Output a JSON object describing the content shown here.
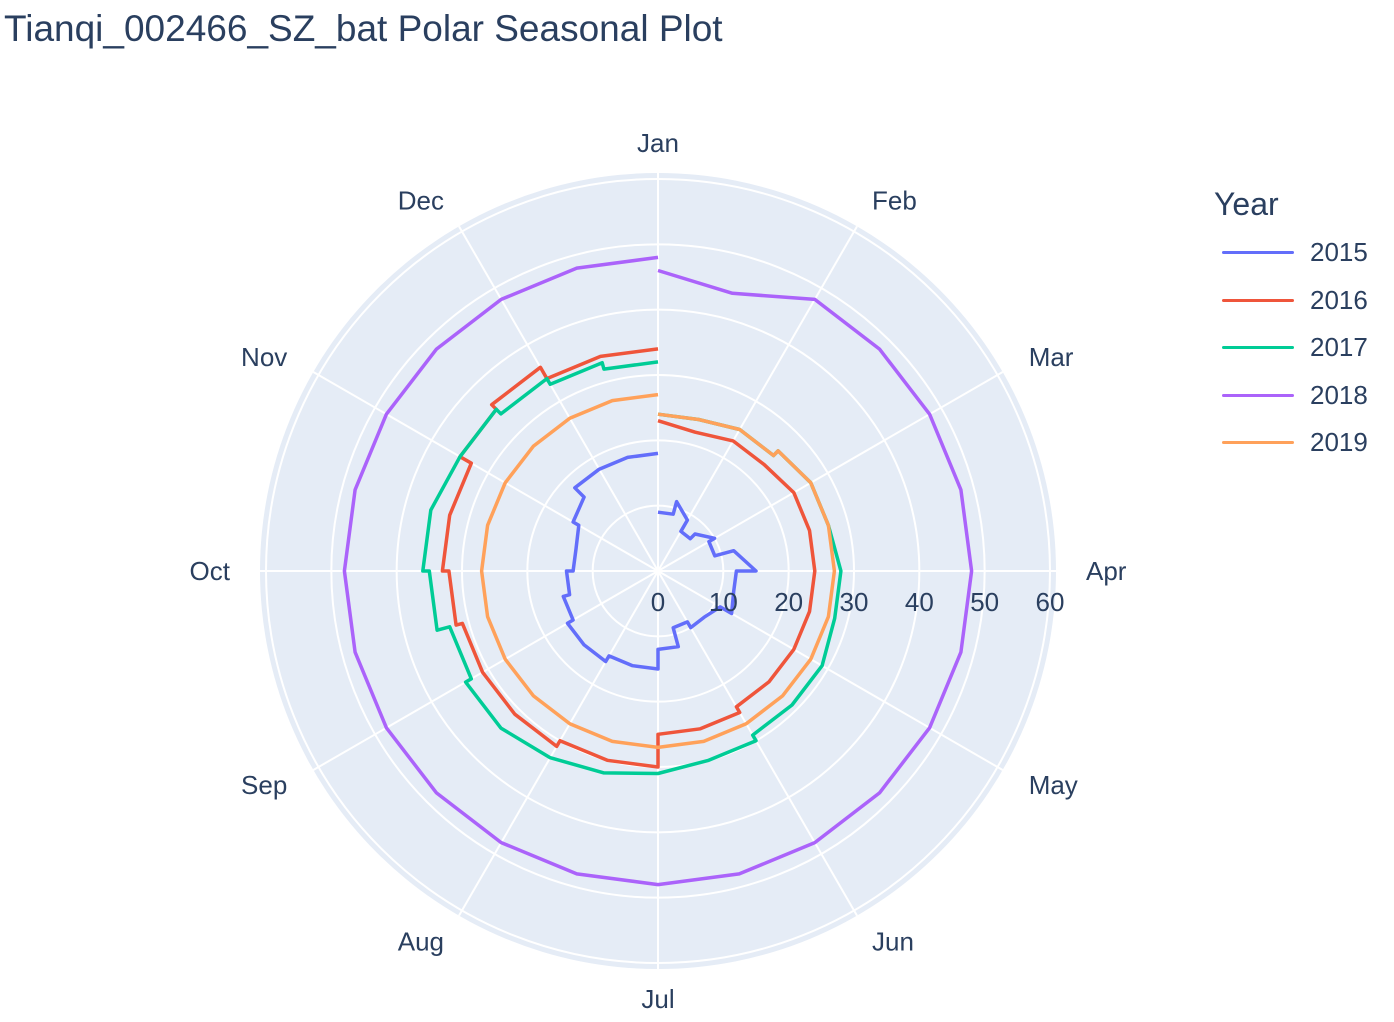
{
  "chart_data": {
    "type": "polar-line",
    "title": "Tianqi_002466_SZ_bat Polar Seasonal Plot",
    "legend_title": "Year",
    "legend_position": "right",
    "radial_axis": {
      "range": [
        0,
        60
      ],
      "ticks": [
        0,
        10,
        20,
        30,
        40,
        50,
        60
      ]
    },
    "angular_axis": {
      "direction": "clockwise",
      "rotation": "Jan at top",
      "categories": [
        "Jan",
        "Feb",
        "Mar",
        "Apr",
        "May",
        "Jun",
        "Jul",
        "Aug",
        "Sep",
        "Oct",
        "Nov",
        "Dec"
      ]
    },
    "x": [
      0.0,
      0.5,
      0.5,
      1.0,
      1.0,
      1.5,
      1.5,
      2.0,
      2.0,
      2.5,
      2.5,
      3.0,
      3.0,
      3.5,
      3.5,
      4.0,
      4.0,
      4.5,
      4.5,
      5.0,
      5.0,
      5.5,
      5.5,
      6.0,
      6.0,
      6.5,
      6.5,
      7.0,
      7.0,
      7.5,
      7.5,
      8.0,
      8.0,
      8.5,
      8.5,
      9.0,
      9.0,
      9.5,
      9.5,
      10.0,
      10.0,
      10.5,
      10.5,
      11.0,
      11.0,
      11.5,
      11.5,
      12.0
    ],
    "series": [
      {
        "name": "2015",
        "color": "#636efa",
        "values": [
          9,
          9,
          11,
          9,
          7,
          7,
          8,
          10,
          9,
          9,
          12,
          15,
          12,
          12,
          12,
          13,
          11,
          10,
          10,
          10,
          9,
          9,
          12,
          12,
          15,
          15,
          15,
          15,
          16,
          16,
          16,
          16,
          15,
          15,
          14,
          14,
          13,
          13,
          13,
          14,
          15,
          16,
          18,
          18,
          18,
          18,
          18,
          18
        ]
      },
      {
        "name": "2016",
        "color": "#ef553b",
        "values": [
          23,
          22,
          22,
          23,
          23,
          23,
          23,
          24,
          24,
          24,
          24,
          24,
          24,
          24,
          24,
          24,
          24,
          24,
          24,
          24,
          25,
          25,
          25,
          25,
          30,
          30,
          30,
          30,
          31,
          31,
          31,
          31,
          31,
          31,
          32,
          32,
          33,
          33,
          33,
          33,
          35,
          35,
          36,
          36,
          34,
          34,
          34,
          34
        ]
      },
      {
        "name": "2017",
        "color": "#00cc96",
        "values": [
          24,
          24,
          24,
          25,
          25,
          25,
          26,
          27,
          27,
          27,
          27,
          28,
          28,
          28,
          28,
          29,
          29,
          29,
          29,
          29,
          30,
          30,
          30,
          31,
          31,
          32,
          32,
          33,
          33,
          34,
          34,
          34,
          33,
          33,
          35,
          35,
          36,
          36,
          36,
          35,
          35,
          35,
          34,
          34,
          33,
          33,
          32,
          32
        ]
      },
      {
        "name": "2018",
        "color": "#ab63fa",
        "values": [
          46,
          44,
          44,
          48,
          48,
          48,
          48,
          48,
          48,
          48,
          48,
          48,
          48,
          48,
          48,
          48,
          48,
          48,
          48,
          48,
          48,
          48,
          48,
          48,
          48,
          48,
          48,
          48,
          48,
          48,
          48,
          48,
          48,
          48,
          48,
          48,
          48,
          48,
          48,
          48,
          48,
          48,
          48,
          48,
          48,
          48,
          48,
          48
        ]
      },
      {
        "name": "2019",
        "color": "#ffa15a",
        "values": [
          24,
          24,
          24,
          25,
          25,
          25,
          26,
          27,
          27,
          27,
          27,
          27,
          27,
          27,
          27,
          27,
          27,
          27,
          27,
          27,
          27,
          27,
          27,
          27,
          27,
          27,
          27,
          27,
          27,
          27,
          27,
          27,
          27,
          27,
          27,
          27,
          27,
          27,
          27,
          27,
          27,
          27,
          27,
          27,
          27,
          27,
          27,
          27
        ]
      }
    ],
    "colors": {
      "polar_bg": "#e5ecf6",
      "grid": "#ffffff",
      "text": "#2a3f5f"
    }
  }
}
